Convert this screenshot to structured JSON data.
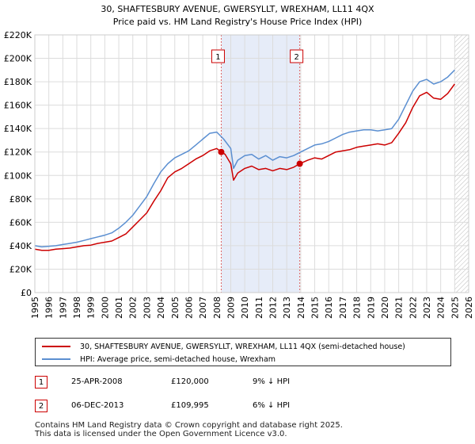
{
  "chart_data": {
    "type": "line",
    "title": "30, SHAFTESBURY AVENUE, GWERSYLLT, WREXHAM, LL11 4QX",
    "subtitle": "Price paid vs. HM Land Registry's House Price Index (HPI)",
    "xlabel": "",
    "ylabel": "",
    "xlim": [
      1995,
      2026
    ],
    "ylim": [
      0,
      220000
    ],
    "yticks": [
      0,
      20000,
      40000,
      60000,
      80000,
      100000,
      120000,
      140000,
      160000,
      180000,
      200000,
      220000
    ],
    "ytick_labels": [
      "£0",
      "£20K",
      "£40K",
      "£60K",
      "£80K",
      "£100K",
      "£120K",
      "£140K",
      "£160K",
      "£180K",
      "£200K",
      "£220K"
    ],
    "xticks": [
      1995,
      1996,
      1997,
      1998,
      1999,
      2000,
      2001,
      2002,
      2003,
      2004,
      2005,
      2006,
      2007,
      2008,
      2009,
      2010,
      2011,
      2012,
      2013,
      2014,
      2015,
      2016,
      2017,
      2018,
      2019,
      2020,
      2021,
      2022,
      2023,
      2024,
      2025,
      2026
    ],
    "shaded_span": [
      2008.32,
      2013.93
    ],
    "future_from": 2025.0,
    "series": [
      {
        "name": "30, SHAFTESBURY AVENUE, GWERSYLLT, WREXHAM, LL11 4QX (semi-detached house)",
        "color": "#cc0000",
        "x": [
          1995.0,
          1995.5,
          1996.0,
          1996.5,
          1997.0,
          1997.5,
          1998.0,
          1998.5,
          1999.0,
          1999.5,
          2000.0,
          2000.5,
          2001.0,
          2001.5,
          2002.0,
          2002.5,
          2003.0,
          2003.5,
          2004.0,
          2004.5,
          2005.0,
          2005.5,
          2006.0,
          2006.5,
          2007.0,
          2007.5,
          2008.0,
          2008.32,
          2008.6,
          2009.0,
          2009.2,
          2009.5,
          2010.0,
          2010.5,
          2011.0,
          2011.5,
          2012.0,
          2012.5,
          2013.0,
          2013.5,
          2013.93,
          2014.5,
          2015.0,
          2015.5,
          2016.0,
          2016.5,
          2017.0,
          2017.5,
          2018.0,
          2018.5,
          2019.0,
          2019.5,
          2020.0,
          2020.5,
          2021.0,
          2021.5,
          2022.0,
          2022.5,
          2023.0,
          2023.5,
          2024.0,
          2024.5,
          2025.0
        ],
        "y": [
          37000,
          36000,
          36000,
          37000,
          37500,
          38000,
          39000,
          40000,
          40500,
          42000,
          43000,
          44000,
          47000,
          50000,
          56000,
          62000,
          68000,
          78000,
          87000,
          98000,
          103000,
          106000,
          110000,
          114000,
          117000,
          121000,
          123000,
          120000,
          118000,
          110000,
          96000,
          102000,
          106000,
          108000,
          105000,
          106000,
          104000,
          106000,
          105000,
          107000,
          110000,
          113000,
          115000,
          114000,
          117000,
          120000,
          121000,
          122000,
          124000,
          125000,
          126000,
          127000,
          126000,
          128000,
          136000,
          145000,
          158000,
          168000,
          171000,
          166000,
          165000,
          170000,
          178000
        ]
      },
      {
        "name": "HPI: Average price, semi-detached house, Wrexham",
        "color": "#5b8fd1",
        "x": [
          1995.0,
          1995.5,
          1996.0,
          1996.5,
          1997.0,
          1997.5,
          1998.0,
          1998.5,
          1999.0,
          1999.5,
          2000.0,
          2000.5,
          2001.0,
          2001.5,
          2002.0,
          2002.5,
          2003.0,
          2003.5,
          2004.0,
          2004.5,
          2005.0,
          2005.5,
          2006.0,
          2006.5,
          2007.0,
          2007.5,
          2008.0,
          2008.5,
          2009.0,
          2009.2,
          2009.5,
          2010.0,
          2010.5,
          2011.0,
          2011.5,
          2012.0,
          2012.5,
          2013.0,
          2013.5,
          2014.0,
          2014.5,
          2015.0,
          2015.5,
          2016.0,
          2016.5,
          2017.0,
          2017.5,
          2018.0,
          2018.5,
          2019.0,
          2019.5,
          2020.0,
          2020.5,
          2021.0,
          2021.5,
          2022.0,
          2022.5,
          2023.0,
          2023.5,
          2024.0,
          2024.5,
          2025.0
        ],
        "y": [
          40000,
          39000,
          39500,
          40000,
          41000,
          42000,
          43000,
          44500,
          46000,
          47500,
          49000,
          51000,
          55000,
          60000,
          66000,
          74000,
          82000,
          93000,
          103000,
          110000,
          115000,
          118000,
          121000,
          126000,
          131000,
          136000,
          137000,
          131000,
          123000,
          106000,
          113000,
          117000,
          118000,
          114000,
          117000,
          113000,
          116000,
          115000,
          117000,
          120000,
          123000,
          126000,
          127000,
          129000,
          132000,
          135000,
          137000,
          138000,
          139000,
          139000,
          138000,
          139000,
          140000,
          148000,
          160000,
          172000,
          180000,
          182000,
          178000,
          180000,
          184000,
          190000
        ]
      }
    ],
    "markers": [
      {
        "label": "1",
        "x": 2008.32,
        "y": 120000
      },
      {
        "label": "2",
        "x": 2013.93,
        "y": 109995
      }
    ]
  },
  "legend": {
    "property_label": "30, SHAFTESBURY AVENUE, GWERSYLLT, WREXHAM, LL11 4QX (semi-detached house)",
    "hpi_label": "HPI: Average price, semi-detached house, Wrexham"
  },
  "transactions": [
    {
      "num": "1",
      "date": "25-APR-2008",
      "price": "£120,000",
      "hpi": "9% ↓ HPI"
    },
    {
      "num": "2",
      "date": "06-DEC-2013",
      "price": "£109,995",
      "hpi": "6% ↓ HPI"
    }
  ],
  "footer": {
    "line1": "Contains HM Land Registry data © Crown copyright and database right 2025.",
    "line2": "This data is licensed under the Open Government Licence v3.0."
  }
}
